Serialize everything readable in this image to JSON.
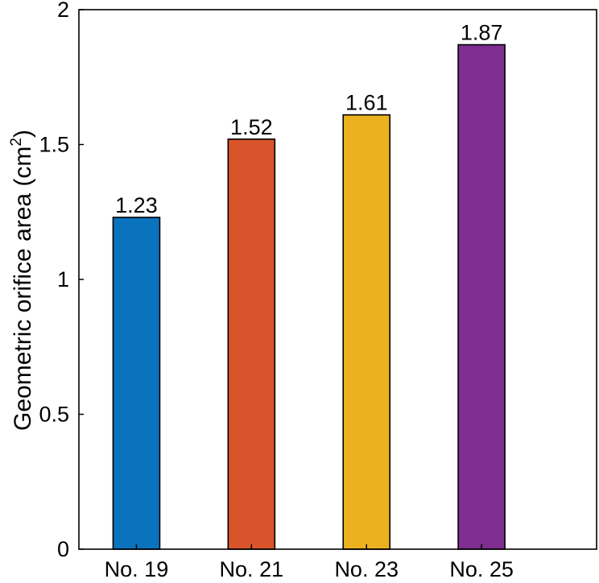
{
  "chart_data": {
    "type": "bar",
    "categories": [
      "No. 19",
      "No. 21",
      "No. 23",
      "No. 25"
    ],
    "values": [
      1.23,
      1.52,
      1.61,
      1.87
    ],
    "value_labels": [
      "1.23",
      "1.52",
      "1.61",
      "1.87"
    ],
    "colors": [
      "#0b72bd",
      "#d9542a",
      "#ebb11f",
      "#7d2e8e"
    ],
    "title": "",
    "xlabel": "",
    "ylabel_main": "Geometric orifice area (cm",
    "ylabel_sup": "2",
    "ylabel_end": ")",
    "ylim": [
      0,
      2
    ],
    "xlim": [
      0.5,
      5.0
    ],
    "category_positions": [
      1,
      2,
      3,
      4
    ],
    "yticks": [
      0,
      0.5,
      1,
      1.5,
      2
    ],
    "ytick_labels": [
      "0",
      "0.5",
      "1",
      "1.5",
      "2"
    ],
    "grid": false,
    "legend": "none"
  }
}
